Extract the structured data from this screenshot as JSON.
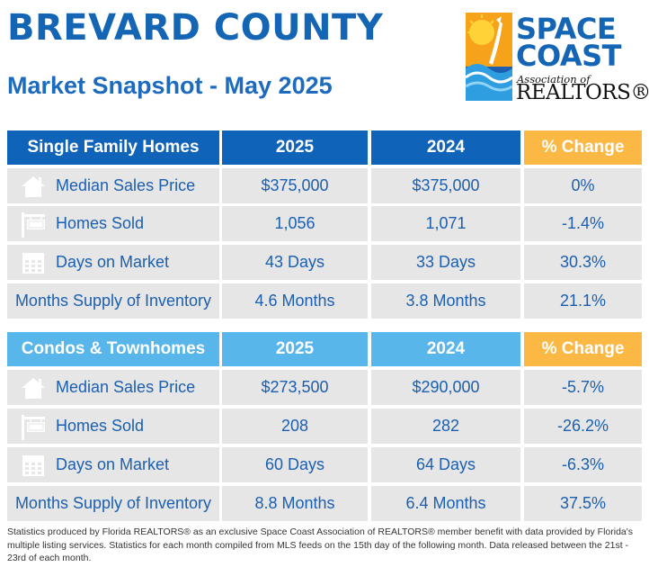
{
  "header": {
    "title": "BREVARD COUNTY",
    "subtitle": "Market Snapshot - May 2025"
  },
  "logo": {
    "line1": "SPACE",
    "line2": "COAST",
    "assoc": "Association of",
    "realtors": "REALTORS®"
  },
  "columns": {
    "current": "2025",
    "previous": "2024",
    "change": "% Change"
  },
  "sections": [
    {
      "heading": "Single Family Homes",
      "rows": [
        {
          "label": "Median Sales Price",
          "icon": "house-icon",
          "current": "$375,000",
          "previous": "$375,000",
          "change": "0%"
        },
        {
          "label": "Homes Sold",
          "icon": "sold-sign-icon",
          "current": "1,056",
          "previous": "1,071",
          "change": "-1.4%"
        },
        {
          "label": "Days on Market",
          "icon": "calendar-icon",
          "current": "43 Days",
          "previous": "33 Days",
          "change": "30.3%"
        },
        {
          "label": "Months Supply of Inventory",
          "icon": "",
          "current": "4.6 Months",
          "previous": "3.8 Months",
          "change": "21.1%"
        }
      ]
    },
    {
      "heading": "Condos & Townhomes",
      "rows": [
        {
          "label": "Median Sales Price",
          "icon": "house-icon",
          "current": "$273,500",
          "previous": "$290,000",
          "change": "-5.7%"
        },
        {
          "label": "Homes Sold",
          "icon": "sold-sign-icon",
          "current": "208",
          "previous": "282",
          "change": "-26.2%"
        },
        {
          "label": "Days on Market",
          "icon": "calendar-icon",
          "current": "60 Days",
          "previous": "64 Days",
          "change": "-6.3%"
        },
        {
          "label": "Months Supply of Inventory",
          "icon": "",
          "current": "8.8 Months",
          "previous": "6.4 Months",
          "change": "37.5%"
        }
      ]
    }
  ],
  "footnote": "Statistics produced by Florida REALTORS® as an exclusive Space Coast Association of REALTORS® member benefit with data provided by Florida's multiple listing services. Statistics for each month compiled from MLS feeds on the 15th day of the following month. Data released between the 21st - 23rd of each month.",
  "colors": {
    "brand_blue": "#1565b5",
    "header_dark": "#0f63b8",
    "header_light": "#58b6ea",
    "header_orange": "#fbb844",
    "row_gray": "#e6e6e6"
  }
}
